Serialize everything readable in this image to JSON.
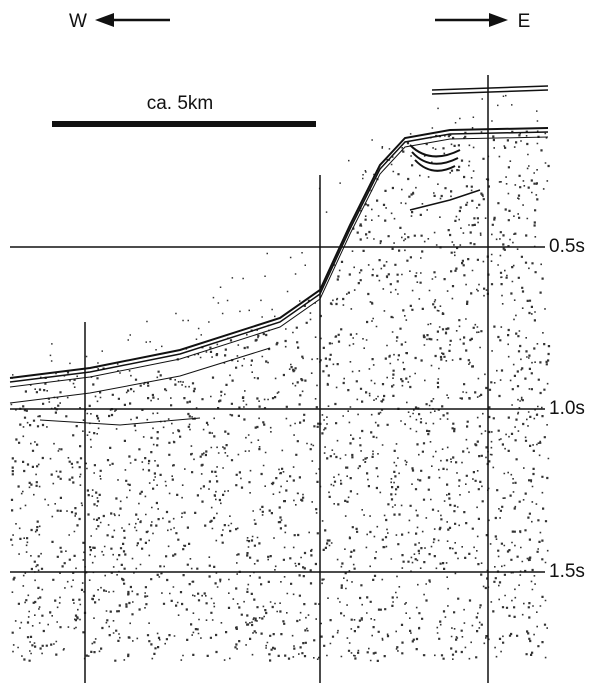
{
  "orientation": {
    "west": "W",
    "east": "E"
  },
  "scale_bar": {
    "label": "ca. 5km"
  },
  "time_labels": [
    "0.5s",
    "1.0s",
    "1.5s"
  ]
}
